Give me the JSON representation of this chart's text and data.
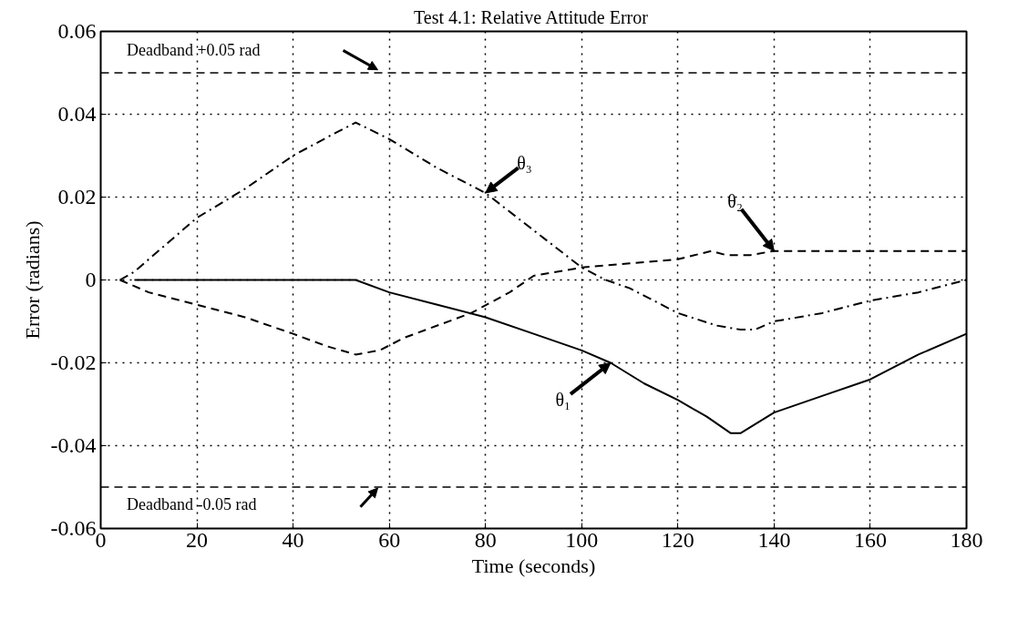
{
  "chart_data": {
    "type": "line",
    "title": "Test 4.1:  Relative Attitude Error",
    "xlabel": "Time (seconds)",
    "ylabel": "Error (radians)",
    "xlim": [
      0,
      180
    ],
    "xticks": [
      0,
      20,
      40,
      60,
      80,
      100,
      120,
      140,
      160,
      180
    ],
    "ylim": [
      -0.06,
      0.06
    ],
    "yticks": [
      -0.06,
      -0.04,
      -0.02,
      0,
      0.02,
      0.04,
      0.06
    ],
    "grid": true,
    "series": [
      {
        "name": "θ₁",
        "color": "#000000",
        "line_style": "solid",
        "x": [
          7,
          53,
          60,
          70,
          80,
          90,
          100,
          106,
          113,
          120,
          126,
          131,
          133,
          140,
          150,
          160,
          170,
          180
        ],
        "values": [
          0,
          0,
          -0.003,
          -0.006,
          -0.009,
          -0.013,
          -0.017,
          -0.02,
          -0.025,
          -0.029,
          -0.033,
          -0.037,
          -0.037,
          -0.032,
          -0.028,
          -0.024,
          -0.018,
          -0.013
        ]
      },
      {
        "name": "θ₂",
        "color": "#000000",
        "line_style": "dashed",
        "x": [
          4,
          10,
          20,
          30,
          40,
          47,
          53,
          58,
          63,
          70,
          77,
          85,
          90,
          100,
          110,
          120,
          127,
          130,
          135,
          140,
          160,
          180
        ],
        "values": [
          0,
          -0.003,
          -0.006,
          -0.009,
          -0.013,
          -0.016,
          -0.018,
          -0.017,
          -0.014,
          -0.011,
          -0.008,
          -0.003,
          0.001,
          0.003,
          0.004,
          0.005,
          0.007,
          0.006,
          0.006,
          0.007,
          0.007,
          0.007
        ]
      },
      {
        "name": "θ₃",
        "color": "#000000",
        "line_style": "dashdot",
        "x": [
          4,
          7,
          20,
          30,
          40,
          48,
          53,
          60,
          70,
          80,
          90,
          100,
          105,
          110,
          120,
          128,
          133,
          136,
          140,
          150,
          160,
          170,
          180
        ],
        "values": [
          0,
          0.002,
          0.015,
          0.022,
          0.03,
          0.035,
          0.038,
          0.034,
          0.027,
          0.021,
          0.012,
          0.003,
          0.0,
          -0.002,
          -0.008,
          -0.011,
          -0.012,
          -0.012,
          -0.01,
          -0.008,
          -0.005,
          -0.003,
          0.0
        ]
      }
    ],
    "ref_lines": [
      {
        "axis": "y",
        "value": 0.05,
        "label": "Deadband +0.05 rad",
        "color": "#000000",
        "line_style": "dashed"
      },
      {
        "axis": "y",
        "value": -0.05,
        "label": "Deadband -0.05 rad",
        "color": "#000000",
        "line_style": "dashed"
      }
    ]
  }
}
